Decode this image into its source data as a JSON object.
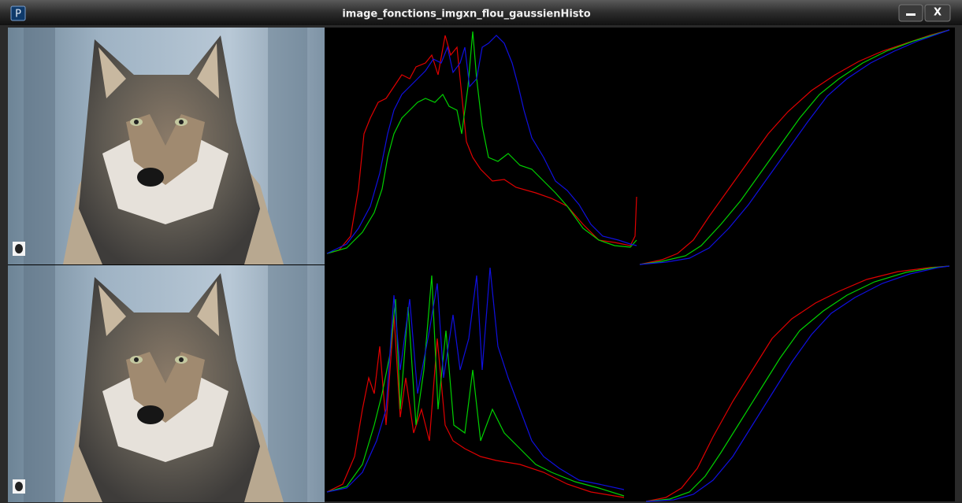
{
  "window": {
    "title": "image_fonctions_imgxn_flou_gaussienHisto",
    "icon": "P",
    "close": "X"
  }
}
